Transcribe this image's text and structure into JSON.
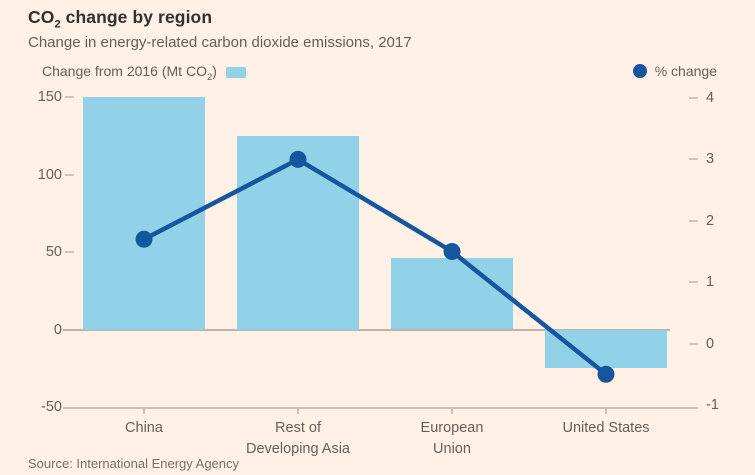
{
  "display": {
    "title": {
      "pre": "CO",
      "sub": "2",
      "post": " change by region"
    },
    "subtitle": "Change in energy-related carbon dioxide emissions, 2017",
    "legend_bar": {
      "pre": "Change from 2016 (Mt CO",
      "sub": "2",
      "post": ")"
    },
    "legend_line": "% change",
    "source": "Source: International Energy Agency"
  },
  "colors": {
    "background": "#FFF1E5",
    "bar": "#92D2E8",
    "line": "#15569E",
    "title_text": "#33302E",
    "muted_text": "#66605B",
    "source_text": "#76706A",
    "axis_line": "#C9BEB4",
    "zero_line": "#BDB2A8",
    "tick": "#CFC4B9"
  },
  "chart_data": {
    "type": "bar+line (dual axis)",
    "title": "CO2 change by region",
    "subtitle": "Change in energy-related carbon dioxide emissions, 2017",
    "source": "Source: International Energy Agency",
    "categories": [
      "China",
      "Rest of Developing Asia",
      "European Union",
      "United States"
    ],
    "category_lines": [
      [
        "China"
      ],
      [
        "Rest of",
        "Developing Asia"
      ],
      [
        "European",
        "Union"
      ],
      [
        "United States"
      ]
    ],
    "series": [
      {
        "name": "Change from 2016 (Mt CO2)",
        "type": "bar",
        "axis": "left",
        "values": [
          150,
          125,
          46,
          -25
        ]
      },
      {
        "name": "% change",
        "type": "line",
        "axis": "right",
        "values": [
          1.7,
          3.0,
          1.5,
          -0.5
        ]
      }
    ],
    "left_axis": {
      "label": "Change from 2016 (Mt CO2)",
      "ticks": [
        150,
        100,
        50,
        0,
        -50
      ],
      "min": -50,
      "max": 150,
      "gridlines": false
    },
    "right_axis": {
      "label": "% change",
      "ticks": [
        4,
        3,
        2,
        1,
        0,
        -1
      ],
      "min": -1,
      "max": 4,
      "gridlines": false
    },
    "legend_position": "top (bar legend left, line legend right)"
  }
}
